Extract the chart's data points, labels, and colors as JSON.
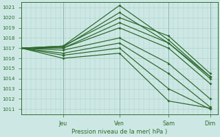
{
  "xlabel": "Pression niveau de la mer( hPa )",
  "bg_color": "#cde8e4",
  "grid_color": "#a8ccc8",
  "line_color": "#2d6a2d",
  "ylim": [
    1010.5,
    1021.5
  ],
  "yticks": [
    1011,
    1012,
    1013,
    1014,
    1015,
    1016,
    1017,
    1018,
    1019,
    1020,
    1021
  ],
  "xlim": [
    0,
    4.0
  ],
  "xtick_positions": [
    0.85,
    2.0,
    3.0,
    3.85
  ],
  "xtick_labels": [
    "Jeu",
    "Ven",
    "Sam",
    "Dim"
  ],
  "series": [
    {
      "x": [
        0.0,
        0.85,
        2.0,
        3.0,
        3.85
      ],
      "y": [
        1017.0,
        1017.2,
        1021.2,
        1017.8,
        1014.2
      ]
    },
    {
      "x": [
        0.0,
        0.85,
        2.0,
        3.0,
        3.85
      ],
      "y": [
        1017.0,
        1017.1,
        1020.5,
        1017.5,
        1014.0
      ]
    },
    {
      "x": [
        0.0,
        0.85,
        2.0,
        3.0,
        3.85
      ],
      "y": [
        1017.0,
        1017.2,
        1020.0,
        1018.2,
        1014.5
      ]
    },
    {
      "x": [
        0.0,
        0.85,
        2.0,
        3.0,
        3.85
      ],
      "y": [
        1017.0,
        1017.0,
        1019.5,
        1017.5,
        1014.2
      ]
    },
    {
      "x": [
        0.0,
        0.85,
        2.0,
        3.0,
        3.85
      ],
      "y": [
        1017.0,
        1017.0,
        1019.0,
        1017.0,
        1013.5
      ]
    },
    {
      "x": [
        0.0,
        0.85,
        2.0,
        3.0,
        3.85
      ],
      "y": [
        1017.0,
        1016.8,
        1018.0,
        1015.5,
        1012.0
      ]
    },
    {
      "x": [
        0.0,
        0.85,
        2.0,
        3.0,
        3.85
      ],
      "y": [
        1017.0,
        1016.5,
        1017.5,
        1014.5,
        1011.2
      ]
    },
    {
      "x": [
        0.0,
        0.85,
        2.0,
        3.0,
        3.85
      ],
      "y": [
        1017.0,
        1016.3,
        1017.0,
        1013.0,
        1011.0
      ]
    },
    {
      "x": [
        0.0,
        0.85,
        2.0,
        3.0,
        3.85
      ],
      "y": [
        1017.0,
        1016.0,
        1016.5,
        1011.8,
        1011.1
      ]
    }
  ],
  "marker": "D",
  "marker_size": 1.8,
  "linewidth": 0.9
}
